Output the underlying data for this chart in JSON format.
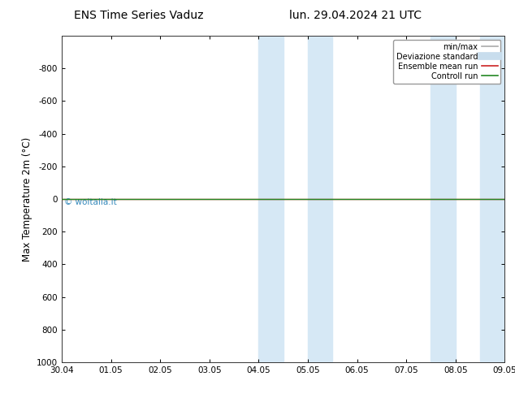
{
  "title_left": "ENS Time Series Vaduz",
  "title_right": "lun. 29.04.2024 21 UTC",
  "ylabel": "Max Temperature 2m (°C)",
  "xlabel_ticks": [
    "30.04",
    "01.05",
    "02.05",
    "03.05",
    "04.05",
    "05.05",
    "06.05",
    "07.05",
    "08.05",
    "09.05"
  ],
  "ylim": [
    -1000,
    1000
  ],
  "yticks": [
    -800,
    -600,
    -400,
    -200,
    0,
    200,
    400,
    600,
    800,
    1000
  ],
  "xlim": [
    0,
    9
  ],
  "shaded_bands": [
    {
      "xmin": 4.0,
      "xmax": 4.5,
      "color": "#d6e8f5"
    },
    {
      "xmin": 5.0,
      "xmax": 5.5,
      "color": "#d6e8f5"
    },
    {
      "xmin": 7.5,
      "xmax": 8.0,
      "color": "#d6e8f5"
    },
    {
      "xmin": 8.5,
      "xmax": 9.0,
      "color": "#d6e8f5"
    }
  ],
  "green_line_y": 0,
  "red_line_y": 0,
  "bg_color": "#ffffff",
  "plot_bg_color": "#ffffff",
  "watermark": "© woitalia.it",
  "watermark_color": "#3388bb",
  "legend_items": [
    {
      "label": "min/max",
      "color": "#aaaaaa",
      "lw": 1.2,
      "style": "solid"
    },
    {
      "label": "Deviazione standard",
      "color": "#c8dded",
      "lw": 7,
      "style": "solid"
    },
    {
      "label": "Ensemble mean run",
      "color": "#cc2222",
      "lw": 1.2,
      "style": "solid"
    },
    {
      "label": "Controll run",
      "color": "#228822",
      "lw": 1.2,
      "style": "solid"
    }
  ],
  "title_fontsize": 10,
  "tick_fontsize": 7.5,
  "ylabel_fontsize": 8.5,
  "watermark_fontsize": 7.5,
  "legend_fontsize": 7
}
